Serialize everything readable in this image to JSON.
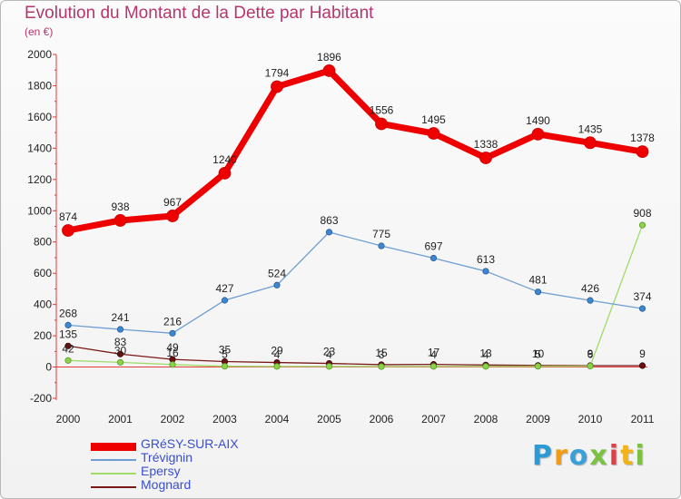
{
  "title": "Evolution du Montant de la Dette par Habitant",
  "subtitle": "(en €)",
  "logo": {
    "text": "Proxiti",
    "letters": [
      "P",
      "r",
      "o",
      "x",
      "i",
      "t",
      "i"
    ],
    "colors": [
      "#2b9bd6",
      "#f39c12",
      "#3aa0d8",
      "#7cc242",
      "#e0404a",
      "#f0b418",
      "#7cc242"
    ]
  },
  "chart_data": {
    "type": "line",
    "title": "Evolution du Montant de la Dette par Habitant",
    "subtitle": "(en €)",
    "x": [
      "2000",
      "2001",
      "2002",
      "2003",
      "2004",
      "2005",
      "2006",
      "2007",
      "2008",
      "2009",
      "2010",
      "2011"
    ],
    "ylim": [
      -200,
      2000
    ],
    "yticks": [
      "-200",
      "0",
      "200",
      "400",
      "600",
      "800",
      "1000",
      "1200",
      "1400",
      "1600",
      "1800",
      "2000"
    ],
    "grid": false,
    "legend_position": "bottom-left",
    "series": [
      {
        "name": "GRéSY-SUR-AIX",
        "color": "#ee0000",
        "values": [
          874,
          938,
          967,
          1240,
          1794,
          1896,
          1556,
          1495,
          1338,
          1490,
          1435,
          1378
        ],
        "labels": [
          "874",
          "938",
          "967",
          "1240",
          "1794",
          "1896",
          "1556",
          "1495",
          "1338",
          "1490",
          "1435",
          "1378"
        ]
      },
      {
        "name": "Trévignin",
        "color": "#6f9fd2",
        "values": [
          268,
          241,
          216,
          427,
          524,
          863,
          775,
          697,
          613,
          481,
          426,
          374
        ],
        "labels": [
          "268",
          "241",
          "216",
          "427",
          "524",
          "863",
          "775",
          "697",
          "613",
          "481",
          "426",
          "374"
        ]
      },
      {
        "name": "Epersy",
        "color": "#9fdc6a",
        "values": [
          42,
          30,
          16,
          5,
          4,
          4,
          3,
          4,
          4,
          5,
          6,
          908
        ],
        "labels": [
          "42",
          "30",
          "16",
          "5",
          "4",
          "4",
          "3",
          "4",
          "4",
          "5",
          "6",
          "908"
        ]
      },
      {
        "name": "Mognard",
        "color": "#7a1818",
        "values": [
          135,
          83,
          49,
          35,
          29,
          23,
          15,
          17,
          13,
          10,
          9,
          9
        ],
        "labels": [
          "135",
          "83",
          "49",
          "35",
          "29",
          "23",
          "15",
          "17",
          "13",
          "10",
          "9",
          "9"
        ]
      }
    ]
  }
}
